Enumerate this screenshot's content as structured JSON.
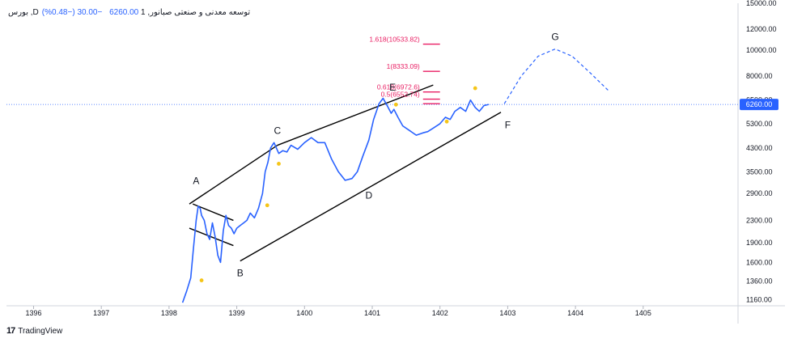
{
  "header": {
    "title": "بورس ,Dتوسعه معدنی و صنعتی صبانور, 1",
    "price": "6260.00",
    "change": "−30.00 (−0.48%)"
  },
  "branding": {
    "logo": "17",
    "name": "TradingView"
  },
  "chart_data": {
    "type": "line",
    "ylim": [
      1100,
      15000
    ],
    "y_scale": "log",
    "xlim": [
      1395.6,
      1406.4
    ],
    "x_ticks": [
      "1396",
      "1397",
      "1398",
      "1399",
      "1400",
      "1401",
      "1402",
      "1403",
      "1404",
      "1405"
    ],
    "y_ticks": [
      "15000.00",
      "12000.00",
      "10000.00",
      "8000.00",
      "6500.00",
      "5300.00",
      "4300.00",
      "3500.00",
      "2900.00",
      "2300.00",
      "1900.00",
      "1600.00",
      "1360.00",
      "1160.00"
    ],
    "last_price": {
      "value": 6260,
      "label": "6260.00",
      "color": "#2962ff"
    },
    "series": [
      {
        "color": "#2962ff",
        "x": [
          1398.2,
          1398.26,
          1398.32,
          1398.36,
          1398.4,
          1398.43,
          1398.46,
          1398.48,
          1398.52,
          1398.56,
          1398.6,
          1398.64,
          1398.68,
          1398.72,
          1398.76,
          1398.8,
          1398.84,
          1398.88,
          1398.92,
          1398.96,
          1399.0,
          1399.05,
          1399.1,
          1399.15,
          1399.2,
          1399.26,
          1399.32,
          1399.38,
          1399.42,
          1399.46,
          1399.5,
          1399.55,
          1399.62,
          1399.68,
          1399.74,
          1399.8,
          1399.9,
          1400.0,
          1400.1,
          1400.2,
          1400.3,
          1400.4,
          1400.5,
          1400.6,
          1400.7,
          1400.78,
          1400.86,
          1400.95,
          1401.02,
          1401.1,
          1401.16,
          1401.22,
          1401.28,
          1401.32,
          1401.38,
          1401.45,
          1401.55,
          1401.65,
          1401.75,
          1401.82,
          1401.9,
          1402.0,
          1402.08,
          1402.15,
          1402.22,
          1402.3,
          1402.38,
          1402.45,
          1402.52,
          1402.58,
          1402.65,
          1402.72
        ],
        "y": [
          1130,
          1250,
          1400,
          1800,
          2300,
          2600,
          2550,
          2400,
          2300,
          2050,
          1950,
          2250,
          2000,
          1700,
          1600,
          2100,
          2400,
          2200,
          2150,
          2050,
          2150,
          2200,
          2250,
          2300,
          2450,
          2350,
          2550,
          2900,
          3500,
          3800,
          4300,
          4500,
          4100,
          4200,
          4150,
          4400,
          4250,
          4500,
          4700,
          4500,
          4500,
          3900,
          3500,
          3250,
          3300,
          3500,
          4000,
          4600,
          5500,
          6300,
          6600,
          6200,
          5800,
          6000,
          5600,
          5200,
          5000,
          4800,
          4900,
          4950,
          5100,
          5300,
          5600,
          5500,
          5900,
          6100,
          5900,
          6500,
          6100,
          5900,
          6200,
          6260
        ]
      }
    ],
    "wave_labels": [
      {
        "label": "A",
        "x": 1398.4,
        "y": 3150
      },
      {
        "label": "B",
        "x": 1399.05,
        "y": 1420
      },
      {
        "label": "C",
        "x": 1399.6,
        "y": 4850
      },
      {
        "label": "D",
        "x": 1400.95,
        "y": 2780
      },
      {
        "label": "E",
        "x": 1401.3,
        "y": 7050
      },
      {
        "label": "F",
        "x": 1403.0,
        "y": 5100
      },
      {
        "label": "G",
        "x": 1403.7,
        "y": 10900
      }
    ],
    "fibonacci": [
      {
        "label": "1.618(10533.82)",
        "value": 10533.82
      },
      {
        "label": "1(8333.09)",
        "value": 8333.09
      },
      {
        "label": "0.618(6972.6)",
        "value": 6972.6
      },
      {
        "label": "0.5(6552.74)",
        "value": 6552.74
      }
    ],
    "fib_extra_level": 6300,
    "fib_color": "#e91e63",
    "trend_lines": [
      {
        "x": [
          1398.3,
          1399.6
        ],
        "y": [
          2650,
          4400
        ]
      },
      {
        "x": [
          1399.6,
          1401.9
        ],
        "y": [
          4400,
          7400
        ]
      },
      {
        "x": [
          1399.05,
          1402.9
        ],
        "y": [
          1620,
          5850
        ]
      },
      {
        "x": [
          1398.35,
          1398.95
        ],
        "y": [
          2650,
          2300
        ]
      },
      {
        "x": [
          1398.3,
          1398.95
        ],
        "y": [
          2150,
          1850
        ]
      }
    ],
    "projection": {
      "style": "dashed",
      "x": [
        1402.95,
        1403.2,
        1403.45,
        1403.7,
        1403.95,
        1404.2,
        1404.5
      ],
      "y": [
        6300,
        8000,
        9500,
        10100,
        9500,
        8300,
        7000
      ]
    },
    "markers": [
      {
        "x": 1398.48,
        "y": 1370
      },
      {
        "x": 1399.45,
        "y": 2620
      },
      {
        "x": 1399.62,
        "y": 3750
      },
      {
        "x": 1401.35,
        "y": 6250
      },
      {
        "x": 1402.1,
        "y": 5400
      },
      {
        "x": 1402.52,
        "y": 7200
      }
    ],
    "marker_color": "#f5c518"
  }
}
